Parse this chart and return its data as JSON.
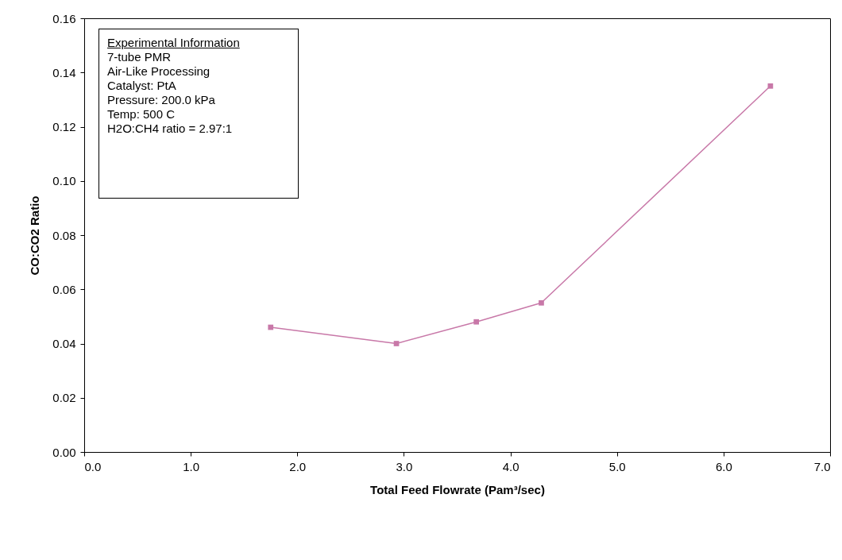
{
  "chart_data": {
    "type": "line",
    "xlabel": "Total Feed Flowrate (Pam³/sec)",
    "ylabel": "CO:CO2 Ratio",
    "x": [
      1.75,
      2.93,
      3.68,
      4.29,
      6.44
    ],
    "series": [
      {
        "color": "#c878a8",
        "values": [
          0.046,
          0.04,
          0.048,
          0.055,
          0.135
        ]
      }
    ],
    "xlim": [
      0,
      7
    ],
    "xticks": [
      {
        "value": 0,
        "label": "0.0"
      },
      {
        "value": 1,
        "label": "1.0"
      },
      {
        "value": 2,
        "label": "2.0"
      },
      {
        "value": 3,
        "label": "3.0"
      },
      {
        "value": 4,
        "label": "4.0"
      },
      {
        "value": 5,
        "label": "5.0"
      },
      {
        "value": 6,
        "label": "6.0"
      },
      {
        "value": 7,
        "label": "7.0"
      }
    ],
    "ylim": [
      0,
      0.16
    ],
    "yticks": [
      {
        "value": 0,
        "label": "0.00"
      },
      {
        "value": 0.02,
        "label": "0.02"
      },
      {
        "value": 0.04,
        "label": "0.04"
      },
      {
        "value": 0.06,
        "label": "0.06"
      },
      {
        "value": 0.08,
        "label": "0.08"
      },
      {
        "value": 0.1,
        "label": "0.10"
      },
      {
        "value": 0.12,
        "label": "0.12"
      },
      {
        "value": 0.14,
        "label": "0.14"
      },
      {
        "value": 0.16,
        "label": "0.16"
      }
    ],
    "marker": "square",
    "line_style": "solid",
    "grid": false,
    "annotations": [
      "Experimental Information",
      "7-tube PMR",
      "Air-Like Processing",
      "Catalyst:  PtA",
      "Pressure: 200.0 kPa",
      "Temp: 500 C",
      "H2O:CH4 ratio = 2.97:1"
    ]
  }
}
